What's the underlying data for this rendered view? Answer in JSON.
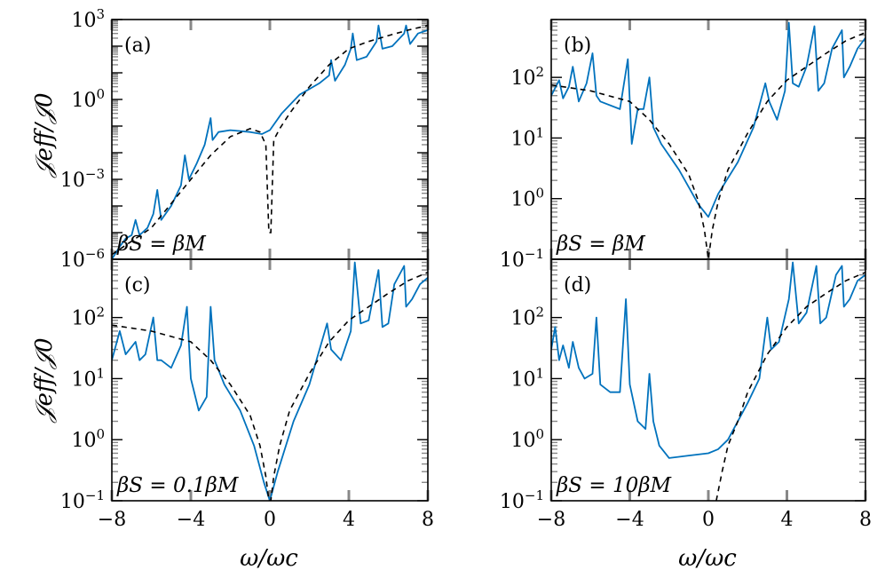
{
  "colors": {
    "model": "#0072bd",
    "approx": "#000000",
    "axis": "#000000",
    "tick_minor": "#888888"
  },
  "labels": {
    "ylabel_top": "𝒥eff/𝒥0",
    "ylabel_bottom": "𝒥eff/𝒥0",
    "xlabel_left": "ω/ωc",
    "xlabel_right": "ω/ωc"
  },
  "chart_data": [
    {
      "type": "line",
      "panel": "(a)",
      "annotation": "βS = βM",
      "xlim": [
        -8,
        8
      ],
      "ylim": [
        1e-06,
        1000
      ],
      "yscale": "log",
      "yticks": [
        "10^3",
        "10^0",
        "10^-3",
        "10^-6"
      ],
      "xticks": [],
      "series": [
        {
          "style": "solid",
          "x": [
            -8,
            -7.6,
            -7.3,
            -7.0,
            -6.8,
            -6.6,
            -6.2,
            -5.9,
            -5.7,
            -5.5,
            -5.0,
            -4.5,
            -4.3,
            -4.1,
            -3.7,
            -3.3,
            -3.0,
            -2.9,
            -2.6,
            -2.0,
            -1.0,
            -0.4,
            0.0,
            0.6,
            1.5,
            2.5,
            3.0,
            3.1,
            3.3,
            3.8,
            4.1,
            4.2,
            4.4,
            4.9,
            5.4,
            5.5,
            5.7,
            6.2,
            6.8,
            6.9,
            7.1,
            7.5,
            8.0
          ],
          "y": [
            1e-06,
            3e-06,
            6e-06,
            8e-06,
            3e-05,
            8e-06,
            1.5e-05,
            5e-05,
            0.0004,
            3e-05,
            0.0001,
            0.0006,
            0.008,
            0.001,
            0.004,
            0.02,
            0.2,
            0.03,
            0.06,
            0.07,
            0.06,
            0.05,
            0.07,
            0.3,
            1.5,
            4,
            8,
            30,
            5,
            20,
            80,
            300,
            30,
            40,
            150,
            600,
            80,
            100,
            300,
            600,
            120,
            300,
            400
          ]
        },
        {
          "style": "dashed",
          "x": [
            -8,
            -6,
            -4,
            -3,
            -2,
            -1,
            -0.5,
            -0.2,
            -0.05,
            0.05,
            0.2,
            0.5,
            1,
            2,
            3,
            4,
            5,
            6,
            7,
            8
          ],
          "y": [
            1.5e-06,
            1.5e-05,
            0.001,
            0.008,
            0.04,
            0.08,
            0.06,
            0.02,
            1e-05,
            1e-05,
            0.03,
            0.08,
            0.3,
            3,
            20,
            80,
            150,
            250,
            400,
            600
          ]
        }
      ]
    },
    {
      "type": "line",
      "panel": "(b)",
      "annotation": "βS = βM",
      "xlim": [
        -8,
        8
      ],
      "ylim": [
        0.1,
        900
      ],
      "yscale": "log",
      "yticks": [
        "10^2",
        "10^1",
        "10^0",
        "10^-1"
      ],
      "xticks": [],
      "series": [
        {
          "style": "solid",
          "x": [
            -8,
            -7.6,
            -7.4,
            -7.1,
            -6.9,
            -6.6,
            -6.2,
            -5.9,
            -5.7,
            -5.5,
            -4.5,
            -4.1,
            -3.9,
            -3.6,
            -3.3,
            -3.0,
            -2.8,
            -2.4,
            -1.5,
            -0.5,
            0.0,
            0.5,
            1.5,
            2.3,
            2.9,
            3.1,
            3.5,
            3.9,
            4.1,
            4.3,
            4.6,
            5.0,
            5.4,
            5.6,
            5.9,
            6.3,
            6.8,
            6.9,
            7.2,
            7.6,
            8.0
          ],
          "y": [
            50,
            90,
            45,
            70,
            150,
            40,
            80,
            250,
            50,
            40,
            30,
            200,
            8,
            30,
            30,
            100,
            15,
            8,
            3,
            0.8,
            0.5,
            1.2,
            4,
            15,
            80,
            40,
            20,
            60,
            800,
            80,
            70,
            150,
            700,
            60,
            80,
            300,
            600,
            100,
            150,
            300,
            450
          ]
        },
        {
          "style": "dashed",
          "x": [
            -8,
            -6,
            -4,
            -3,
            -2,
            -1,
            -0.5,
            -0.2,
            0.0,
            0.2,
            0.5,
            1,
            2,
            3,
            4,
            5,
            6,
            7,
            8
          ],
          "y": [
            75,
            60,
            40,
            20,
            8,
            2.5,
            0.9,
            0.3,
            0.1,
            0.3,
            0.9,
            3,
            12,
            40,
            90,
            150,
            250,
            400,
            550
          ]
        }
      ]
    },
    {
      "type": "line",
      "panel": "(c)",
      "annotation": "βS = 0.1βM",
      "xlim": [
        -8,
        8
      ],
      "ylim": [
        0.1,
        900
      ],
      "yscale": "log",
      "yticks": [
        "10^2",
        "10^1",
        "10^0",
        "10^-1"
      ],
      "xticks": [
        "−8",
        "−4",
        "0",
        "4",
        "8"
      ],
      "xlabel": "ω/ωc",
      "series": [
        {
          "style": "solid",
          "x": [
            -8,
            -7.6,
            -7.3,
            -7.1,
            -6.8,
            -6.6,
            -6.3,
            -5.9,
            -5.7,
            -5.5,
            -5.0,
            -4.5,
            -4.2,
            -4.0,
            -3.6,
            -3.2,
            -3.0,
            -2.8,
            -2.3,
            -1.5,
            -0.8,
            -0.3,
            0.0,
            0.4,
            1.2,
            2.0,
            2.9,
            3.1,
            3.6,
            4.1,
            4.3,
            4.6,
            5.0,
            5.5,
            5.7,
            6.0,
            6.3,
            6.8,
            6.9,
            7.2,
            7.6,
            8.0
          ],
          "y": [
            20,
            60,
            25,
            30,
            40,
            20,
            25,
            100,
            20,
            20,
            15,
            35,
            150,
            10,
            3,
            5,
            150,
            20,
            8,
            3,
            0.8,
            0.2,
            0.1,
            0.3,
            2,
            8,
            80,
            30,
            20,
            60,
            800,
            80,
            90,
            600,
            70,
            80,
            350,
            700,
            150,
            200,
            350,
            450
          ]
        },
        {
          "style": "dashed",
          "x": [
            -8,
            -6,
            -4,
            -3,
            -2,
            -1,
            -0.5,
            -0.2,
            -0.05,
            0.05,
            0.2,
            0.5,
            1,
            2,
            3,
            4,
            5,
            6,
            7,
            8
          ],
          "y": [
            75,
            60,
            40,
            20,
            8,
            2.5,
            0.8,
            0.25,
            0.1,
            0.1,
            0.25,
            0.8,
            3,
            12,
            40,
            90,
            150,
            250,
            400,
            550
          ]
        }
      ]
    },
    {
      "type": "line",
      "panel": "(d)",
      "annotation": "βS = 10βM",
      "xlim": [
        -8,
        8
      ],
      "ylim": [
        0.1,
        900
      ],
      "yscale": "log",
      "yticks": [
        "10^2",
        "10^1",
        "10^0",
        "10^-1"
      ],
      "xticks": [
        "−8",
        "−4",
        "0",
        "4",
        "8"
      ],
      "xlabel": "ω/ωc",
      "series": [
        {
          "style": "solid",
          "x": [
            -8,
            -7.8,
            -7.6,
            -7.4,
            -7.1,
            -6.9,
            -6.6,
            -6.3,
            -5.9,
            -5.7,
            -5.5,
            -5.0,
            -4.5,
            -4.2,
            -4.0,
            -3.6,
            -3.2,
            -3.0,
            -2.8,
            -2.5,
            -2.0,
            -1.0,
            0.0,
            0.5,
            1.0,
            2.0,
            2.6,
            3.0,
            3.2,
            3.6,
            4.1,
            4.3,
            4.6,
            5.0,
            5.5,
            5.7,
            6.0,
            6.5,
            6.8,
            6.9,
            7.2,
            7.6,
            8.0
          ],
          "y": [
            30,
            70,
            20,
            35,
            15,
            40,
            15,
            10,
            12,
            100,
            8,
            6,
            6,
            200,
            8,
            2,
            1.5,
            12,
            2,
            0.8,
            0.5,
            0.55,
            0.6,
            0.7,
            1,
            4,
            10,
            100,
            30,
            40,
            200,
            800,
            80,
            120,
            700,
            80,
            100,
            500,
            700,
            150,
            200,
            400,
            500
          ]
        },
        {
          "style": "dashed",
          "x": [
            0.4,
            0.7,
            1,
            1.5,
            2,
            3,
            4,
            5,
            6,
            7,
            8
          ],
          "y": [
            0.1,
            0.3,
            0.8,
            2,
            6,
            25,
            70,
            150,
            250,
            400,
            550
          ]
        }
      ]
    }
  ]
}
